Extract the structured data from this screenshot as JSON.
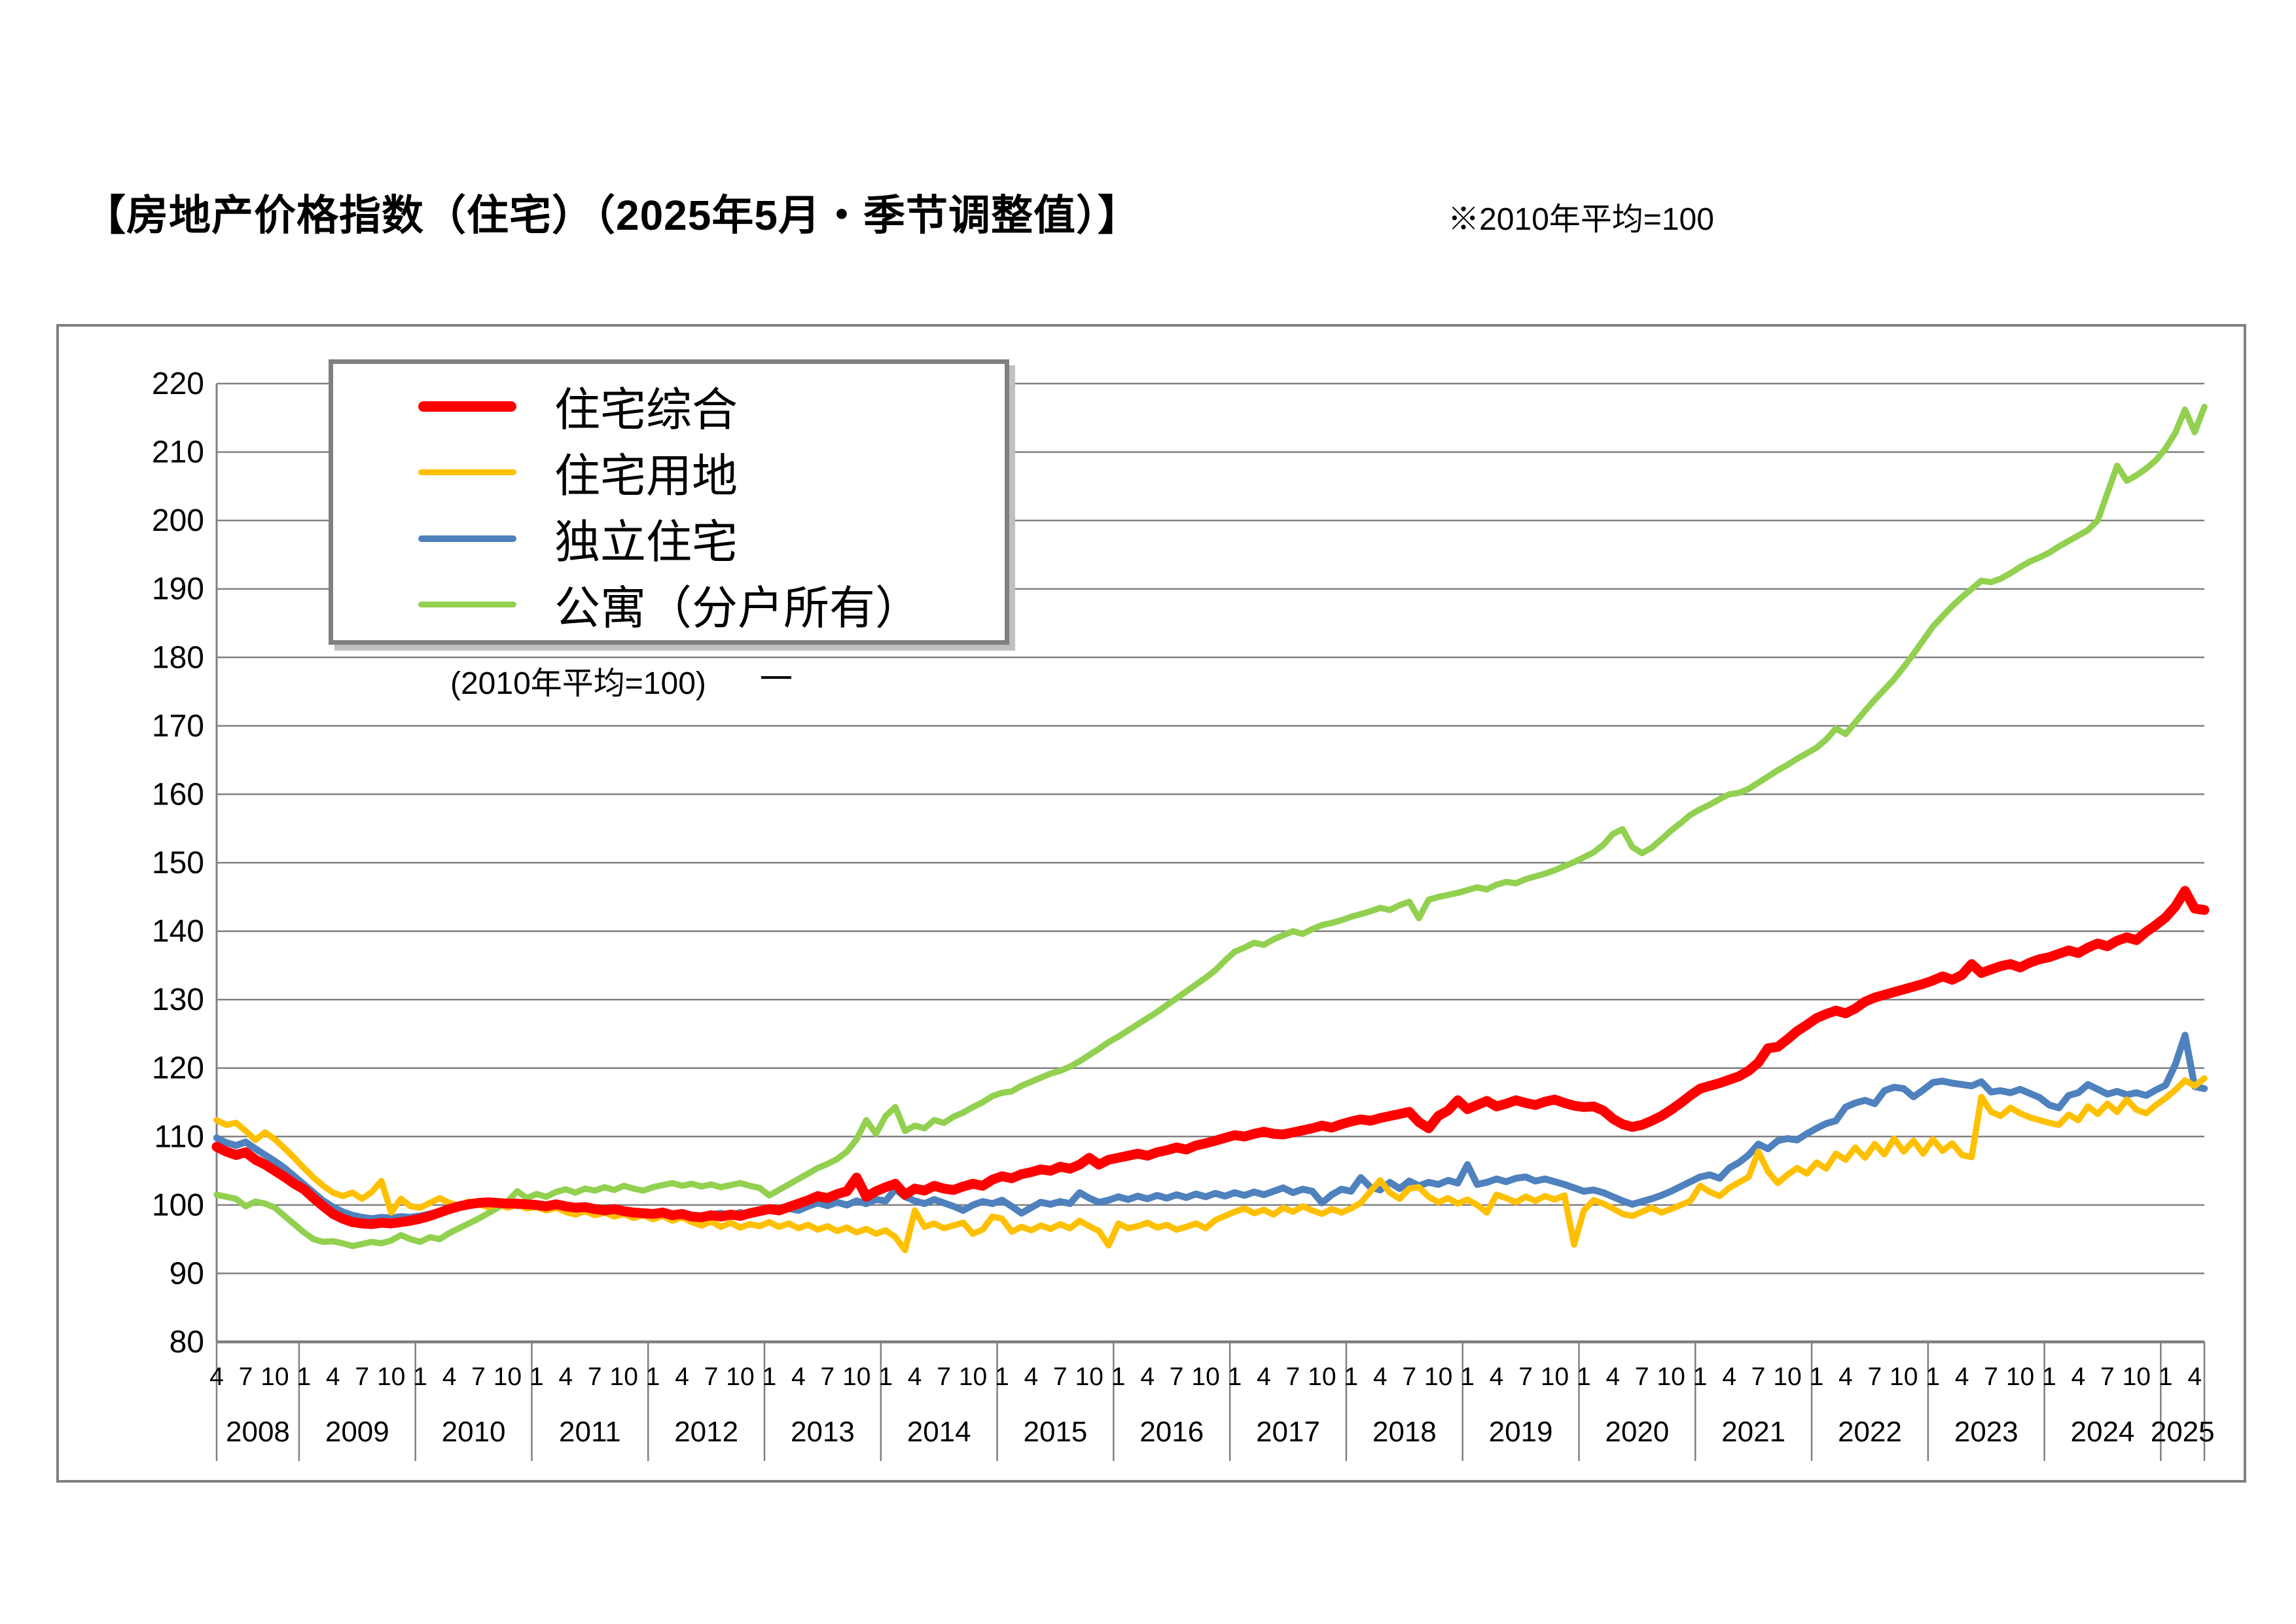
{
  "title": "【房地产价格指数（住宅）（2025年5月・季节调整值）】",
  "note": "※2010年平均=100",
  "legend_caption": "(2010年平均=100)",
  "colors": {
    "grid": "#808080",
    "box_border": "#808080",
    "background": "#ffffff",
    "text": "#000000"
  },
  "chart_data": {
    "type": "line",
    "title": "房地产价格指数（住宅）",
    "x_start": "2008-04",
    "x_end": "2025-05",
    "x_frequency": "monthly",
    "ylim": [
      80,
      220
    ],
    "ytick_step": 10,
    "grid": "horizontal",
    "legend_position": "top-left-inside",
    "month_tick_step": 3,
    "month_tick_labels": [
      "4",
      "7",
      "10",
      "1",
      "4",
      "7",
      "10",
      "1",
      "4",
      "7",
      "10",
      "1",
      "4",
      "7",
      "10",
      "1",
      "4",
      "7",
      "10",
      "1",
      "4",
      "7",
      "10",
      "1",
      "4",
      "7",
      "10",
      "1",
      "4",
      "7",
      "10",
      "1",
      "4",
      "7",
      "10",
      "1",
      "4",
      "7",
      "10",
      "1",
      "4",
      "7",
      "10",
      "1",
      "4",
      "7",
      "10",
      "1",
      "4",
      "7",
      "10",
      "1",
      "4",
      "7",
      "10",
      "1",
      "4",
      "7",
      "10",
      "1",
      "4",
      "7",
      "10",
      "1",
      "4",
      "7",
      "10",
      "1",
      "4"
    ],
    "year_labels": [
      "2008",
      "2009",
      "2010",
      "2011",
      "2012",
      "2013",
      "2014",
      "2015",
      "2016",
      "2017",
      "2018",
      "2019",
      "2020",
      "2021",
      "2022",
      "2023",
      "2024",
      "2025"
    ],
    "draw_order": [
      3,
      2,
      1,
      0
    ],
    "series": [
      {
        "name": "住宅综合",
        "color": "#FF0000",
        "stroke_width": 15,
        "swatch_height": 16,
        "values": [
          108.5,
          107.8,
          107.3,
          107.7,
          106.6,
          105.9,
          105.0,
          104.1,
          103.1,
          102.3,
          101.0,
          99.8,
          98.7,
          98.0,
          97.5,
          97.3,
          97.2,
          97.4,
          97.3,
          97.5,
          97.7,
          98.0,
          98.4,
          98.9,
          99.4,
          99.8,
          100.1,
          100.3,
          100.4,
          100.3,
          100.2,
          100.2,
          100.1,
          100.0,
          99.8,
          100.1,
          99.8,
          99.6,
          99.7,
          99.4,
          99.2,
          99.4,
          99.1,
          98.9,
          98.8,
          98.7,
          98.9,
          98.5,
          98.7,
          98.3,
          98.2,
          98.5,
          98.3,
          98.6,
          98.4,
          98.8,
          99.1,
          99.4,
          99.2,
          99.7,
          100.2,
          100.7,
          101.3,
          101.0,
          101.6,
          102.0,
          104.0,
          101.2,
          102.0,
          102.6,
          103.1,
          101.5,
          102.4,
          102.1,
          102.8,
          102.4,
          102.2,
          102.7,
          103.1,
          102.8,
          103.7,
          104.2,
          103.9,
          104.5,
          104.8,
          105.2,
          105.0,
          105.6,
          105.3,
          105.9,
          106.9,
          105.9,
          106.6,
          106.9,
          107.2,
          107.5,
          107.2,
          107.7,
          108.0,
          108.4,
          108.1,
          108.7,
          109.0,
          109.4,
          109.8,
          110.2,
          110.0,
          110.4,
          110.7,
          110.4,
          110.3,
          110.6,
          110.9,
          111.2,
          111.6,
          111.3,
          111.8,
          112.2,
          112.5,
          112.3,
          112.7,
          113.0,
          113.3,
          113.6,
          112.1,
          111.2,
          113.0,
          113.8,
          115.3,
          114.0,
          114.6,
          115.2,
          114.4,
          114.8,
          115.3,
          114.9,
          114.6,
          115.1,
          115.4,
          114.9,
          114.5,
          114.3,
          114.4,
          113.8,
          112.6,
          111.8,
          111.4,
          111.7,
          112.3,
          113.0,
          113.9,
          114.9,
          116.0,
          117.0,
          117.4,
          117.8,
          118.3,
          118.8,
          119.6,
          120.8,
          122.9,
          123.1,
          124.2,
          125.4,
          126.3,
          127.3,
          127.9,
          128.4,
          128.0,
          128.7,
          129.7,
          130.3,
          130.7,
          131.1,
          131.5,
          131.9,
          132.3,
          132.8,
          133.4,
          132.9,
          133.6,
          135.2,
          133.9,
          134.4,
          134.9,
          135.2,
          134.7,
          135.4,
          135.9,
          136.2,
          136.7,
          137.2,
          136.8,
          137.6,
          138.2,
          137.8,
          138.6,
          139.1,
          138.7,
          139.9,
          140.9,
          142.0,
          143.6,
          145.9,
          143.3,
          143.1
        ]
      },
      {
        "name": "住宅用地",
        "color": "#FFC000",
        "stroke_width": 9.5,
        "swatch_height": 9,
        "values": [
          112.4,
          111.7,
          112.0,
          110.8,
          109.5,
          110.6,
          109.6,
          108.3,
          106.9,
          105.4,
          104.0,
          102.8,
          101.8,
          101.3,
          101.8,
          100.9,
          101.9,
          103.5,
          98.9,
          100.9,
          99.8,
          99.6,
          100.3,
          101.0,
          100.3,
          99.9,
          100.5,
          100.1,
          99.7,
          100.1,
          99.6,
          100.0,
          99.5,
          99.7,
          99.2,
          99.6,
          99.0,
          98.6,
          99.1,
          98.5,
          98.9,
          98.3,
          98.7,
          98.1,
          98.5,
          97.9,
          98.4,
          97.7,
          98.2,
          97.5,
          97.0,
          97.6,
          96.8,
          97.4,
          96.7,
          97.2,
          96.9,
          97.5,
          96.8,
          97.3,
          96.6,
          97.1,
          96.4,
          96.9,
          96.2,
          96.7,
          96.0,
          96.5,
          95.8,
          96.3,
          95.3,
          93.4,
          99.2,
          96.8,
          97.3,
          96.6,
          97.0,
          97.4,
          95.8,
          96.4,
          98.3,
          98.0,
          96.1,
          96.8,
          96.3,
          97.0,
          96.5,
          97.2,
          96.6,
          97.7,
          96.9,
          96.2,
          94.1,
          97.3,
          96.6,
          96.9,
          97.4,
          96.7,
          97.1,
          96.4,
          96.8,
          97.3,
          96.6,
          97.8,
          98.4,
          99.0,
          99.5,
          98.8,
          99.3,
          98.6,
          99.6,
          99.0,
          99.8,
          99.2,
          98.7,
          99.4,
          98.9,
          99.5,
          100.3,
          102.0,
          103.6,
          101.8,
          100.9,
          102.4,
          102.6,
          101.2,
          100.4,
          101.0,
          100.2,
          100.8,
          100.0,
          98.9,
          101.5,
          101.0,
          100.4,
          101.2,
          100.6,
          101.3,
          100.8,
          101.4,
          94.2,
          99.2,
          100.7,
          100.2,
          99.5,
          98.7,
          98.4,
          99.0,
          99.6,
          98.9,
          99.4,
          100.0,
          100.6,
          102.8,
          101.9,
          101.3,
          102.5,
          103.3,
          104.1,
          107.8,
          104.9,
          103.2,
          104.4,
          105.4,
          104.6,
          106.2,
          105.3,
          107.5,
          106.6,
          108.4,
          106.9,
          108.9,
          107.4,
          109.7,
          107.8,
          109.4,
          107.5,
          109.6,
          107.9,
          109.0,
          107.3,
          107.0,
          115.8,
          113.6,
          113.0,
          114.2,
          113.4,
          112.8,
          112.4,
          112.0,
          111.7,
          113.2,
          112.4,
          114.4,
          113.3,
          114.8,
          113.6,
          115.4,
          113.9,
          113.4,
          114.6,
          115.6,
          116.8,
          118.2,
          117.4,
          118.5
        ]
      },
      {
        "name": "独立住宅",
        "color": "#4E81BD",
        "stroke_width": 10.5,
        "swatch_height": 10,
        "values": [
          109.8,
          109.1,
          108.7,
          109.2,
          108.2,
          107.3,
          106.4,
          105.4,
          104.2,
          103.0,
          101.8,
          100.6,
          99.7,
          99.0,
          98.5,
          98.2,
          98.0,
          98.2,
          98.1,
          98.3,
          98.2,
          98.4,
          98.7,
          99.1,
          99.5,
          99.8,
          100.1,
          100.3,
          100.2,
          100.1,
          100.0,
          99.9,
          99.8,
          99.9,
          99.7,
          99.9,
          99.6,
          99.4,
          99.6,
          99.3,
          99.1,
          99.3,
          99.0,
          98.8,
          99.0,
          98.7,
          98.9,
          98.6,
          98.8,
          98.5,
          98.3,
          98.6,
          98.8,
          98.5,
          98.9,
          98.6,
          99.0,
          99.3,
          99.0,
          99.5,
          99.2,
          99.8,
          100.3,
          99.9,
          100.4,
          100.0,
          100.6,
          100.2,
          100.8,
          100.6,
          102.3,
          101.2,
          100.6,
          100.2,
          100.8,
          100.3,
          99.8,
          99.2,
          100.0,
          100.5,
          100.2,
          100.7,
          99.8,
          98.8,
          99.6,
          100.4,
          100.1,
          100.5,
          100.2,
          101.8,
          101.0,
          100.4,
          100.7,
          101.2,
          100.8,
          101.3,
          100.9,
          101.4,
          101.0,
          101.5,
          101.1,
          101.6,
          101.2,
          101.7,
          101.3,
          101.8,
          101.4,
          101.9,
          101.5,
          102.0,
          102.5,
          101.8,
          102.3,
          102.0,
          100.3,
          101.5,
          102.3,
          102.0,
          104.0,
          102.6,
          102.2,
          103.3,
          102.4,
          103.5,
          102.8,
          103.3,
          103.0,
          103.6,
          103.2,
          105.9,
          103.0,
          103.3,
          103.8,
          103.4,
          103.9,
          104.1,
          103.5,
          103.8,
          103.4,
          103.0,
          102.5,
          102.0,
          102.2,
          101.8,
          101.2,
          100.6,
          100.1,
          100.5,
          100.9,
          101.4,
          102.0,
          102.7,
          103.4,
          104.1,
          104.4,
          103.9,
          105.4,
          106.2,
          107.3,
          108.9,
          108.2,
          109.4,
          109.7,
          109.5,
          110.4,
          111.2,
          111.9,
          112.3,
          114.3,
          114.9,
          115.3,
          114.8,
          116.7,
          117.2,
          117.0,
          115.8,
          116.8,
          117.9,
          118.1,
          117.8,
          117.6,
          117.4,
          118.0,
          116.5,
          116.7,
          116.4,
          116.9,
          116.3,
          115.7,
          114.6,
          114.2,
          116.0,
          116.4,
          117.6,
          116.9,
          116.2,
          116.6,
          116.1,
          116.4,
          116.0,
          116.8,
          117.5,
          120.5,
          124.8,
          117.3,
          117.0
        ]
      },
      {
        "name": "公寓（分户所有）",
        "color": "#92D050",
        "stroke_width": 9.5,
        "swatch_height": 9,
        "values": [
          101.5,
          101.2,
          100.9,
          99.8,
          100.5,
          100.2,
          99.6,
          98.4,
          97.2,
          96.0,
          95.0,
          94.6,
          94.7,
          94.4,
          94.0,
          94.3,
          94.6,
          94.4,
          94.8,
          95.6,
          95.0,
          94.6,
          95.3,
          95.0,
          95.9,
          96.6,
          97.3,
          98.0,
          98.8,
          99.6,
          100.5,
          102.0,
          101.0,
          101.6,
          101.2,
          101.9,
          102.3,
          101.8,
          102.4,
          102.1,
          102.6,
          102.2,
          102.8,
          102.4,
          102.1,
          102.6,
          102.9,
          103.2,
          102.8,
          103.1,
          102.7,
          103.0,
          102.6,
          102.9,
          103.2,
          102.8,
          102.5,
          101.4,
          102.2,
          103.0,
          103.8,
          104.6,
          105.4,
          106.0,
          106.7,
          107.8,
          109.6,
          112.4,
          110.4,
          113.0,
          114.3,
          110.8,
          111.6,
          111.2,
          112.4,
          112.0,
          112.9,
          113.5,
          114.3,
          115.0,
          115.9,
          116.4,
          116.6,
          117.4,
          118.0,
          118.6,
          119.2,
          119.6,
          120.2,
          121.0,
          121.9,
          122.8,
          123.8,
          124.6,
          125.5,
          126.4,
          127.3,
          128.2,
          129.2,
          130.2,
          131.2,
          132.2,
          133.2,
          134.3,
          135.7,
          137.0,
          137.6,
          138.3,
          138.0,
          138.8,
          139.4,
          140.0,
          139.6,
          140.3,
          140.9,
          141.2,
          141.6,
          142.1,
          142.5,
          142.9,
          143.4,
          143.1,
          143.8,
          144.3,
          141.9,
          144.6,
          145.0,
          145.3,
          145.6,
          146.0,
          146.4,
          146.1,
          146.8,
          147.2,
          147.0,
          147.6,
          148.0,
          148.4,
          148.9,
          149.5,
          150.1,
          150.8,
          151.5,
          152.6,
          154.2,
          154.9,
          152.3,
          151.4,
          152.2,
          153.4,
          154.7,
          155.8,
          157.0,
          157.8,
          158.5,
          159.3,
          160.0,
          160.2,
          160.8,
          161.7,
          162.6,
          163.5,
          164.3,
          165.2,
          166.0,
          166.8,
          168.0,
          169.6,
          168.8,
          170.5,
          172.2,
          173.8,
          175.3,
          176.8,
          178.6,
          180.5,
          182.5,
          184.5,
          186.0,
          187.5,
          188.8,
          190.0,
          191.2,
          191.0,
          191.5,
          192.3,
          193.2,
          194.0,
          194.6,
          195.3,
          196.2,
          197.0,
          197.8,
          198.6,
          200.0,
          204.0,
          208.0,
          205.8,
          206.6,
          207.6,
          208.8,
          210.5,
          212.8,
          216.2,
          212.9,
          216.6
        ]
      }
    ]
  }
}
